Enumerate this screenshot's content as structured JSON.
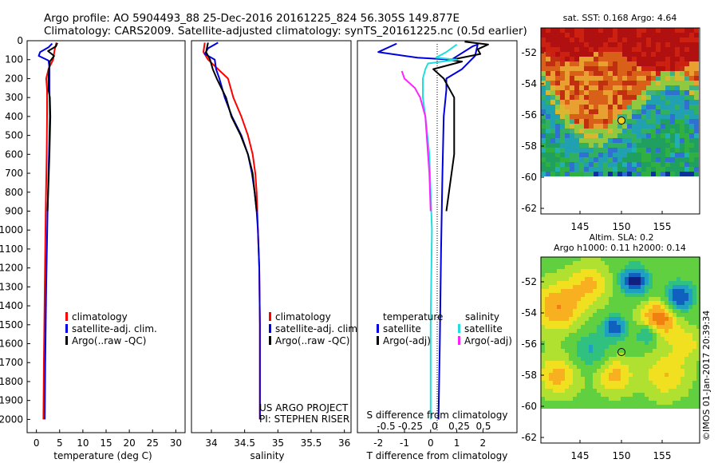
{
  "header": {
    "line1": "Argo profile: AO 5904493_88 25-Dec-2016 20161225_824 56.305S 149.877E",
    "line2": "Climatology: CARS2009. Satellite-adjusted climatology: synTS_20161225.nc (0.5d earlier)"
  },
  "colors": {
    "climatology": "#ff0000",
    "satellite": "#0000dd",
    "argo": "#000000",
    "sat_salinity": "#22dddd",
    "argo_salinity": "#ff22ff"
  },
  "depth_ticks": [
    0,
    100,
    200,
    300,
    400,
    500,
    600,
    700,
    800,
    900,
    1000,
    1100,
    1200,
    1300,
    1400,
    1500,
    1600,
    1700,
    1800,
    1900,
    2000
  ],
  "chart_data": [
    {
      "type": "line",
      "id": "temperature",
      "xlabel": "temperature (deg C)",
      "xlim": [
        -2,
        32
      ],
      "ylim": [
        0,
        2070
      ],
      "xticks": [
        "0",
        "5",
        "10",
        "15",
        "20",
        "25",
        "30"
      ],
      "legend": [
        "climatology",
        "satellite-adj. clim.",
        "Argo(..raw -QC)"
      ],
      "series": [
        {
          "name": "climatology",
          "color": "#ff0000",
          "points": [
            [
              4.3,
              10
            ],
            [
              3.9,
              50
            ],
            [
              3.6,
              100
            ],
            [
              2.6,
              150
            ],
            [
              2.1,
              200
            ],
            [
              2.3,
              260
            ],
            [
              2.3,
              400
            ],
            [
              2.2,
              600
            ],
            [
              2.0,
              900
            ],
            [
              1.8,
              1300
            ],
            [
              1.6,
              1700
            ],
            [
              1.5,
              2000
            ]
          ]
        },
        {
          "name": "satellite-adj. clim.",
          "color": "#0000dd",
          "points": [
            [
              3.4,
              15
            ],
            [
              2.6,
              35
            ],
            [
              0.8,
              60
            ],
            [
              0.5,
              80
            ],
            [
              2.6,
              105
            ],
            [
              2.8,
              140
            ],
            [
              2.8,
              200
            ],
            [
              2.8,
              260
            ],
            [
              2.9,
              400
            ],
            [
              2.7,
              600
            ],
            [
              2.4,
              900
            ],
            [
              2.1,
              1300
            ],
            [
              1.9,
              1700
            ],
            [
              1.8,
              2000
            ]
          ]
        },
        {
          "name": "Argo(..raw -QC)",
          "color": "#000000",
          "points": [
            [
              4.5,
              12
            ],
            [
              4.2,
              30
            ],
            [
              2.5,
              55
            ],
            [
              3.8,
              80
            ],
            [
              2.9,
              110
            ],
            [
              2.7,
              150
            ],
            [
              2.6,
              200
            ],
            [
              2.6,
              260
            ],
            [
              2.9,
              300
            ],
            [
              3.0,
              400
            ],
            [
              2.8,
              600
            ],
            [
              2.4,
              900
            ]
          ]
        }
      ]
    },
    {
      "type": "line",
      "id": "salinity",
      "xlabel": "salinity",
      "xlim": [
        33.7,
        36.1
      ],
      "ylim": [
        0,
        2070
      ],
      "xticks": [
        "34",
        "34.5",
        "35",
        "35.5",
        "36"
      ],
      "legend": [
        "climatology",
        "satellite-adj. clim.",
        "Argo(..raw -QC)"
      ],
      "series": [
        {
          "name": "climatology",
          "color": "#ff0000",
          "points": [
            [
              33.9,
              10
            ],
            [
              33.88,
              60
            ],
            [
              33.95,
              100
            ],
            [
              34.1,
              150
            ],
            [
              34.25,
              200
            ],
            [
              34.33,
              300
            ],
            [
              34.45,
              400
            ],
            [
              34.55,
              500
            ],
            [
              34.62,
              600
            ],
            [
              34.66,
              700
            ],
            [
              34.68,
              800
            ],
            [
              34.7,
              1000
            ],
            [
              34.72,
              1200
            ],
            [
              34.73,
              1500
            ],
            [
              34.73,
              2000
            ]
          ]
        },
        {
          "name": "satellite-adj. clim.",
          "color": "#0000dd",
          "points": [
            [
              34.1,
              10
            ],
            [
              33.95,
              40
            ],
            [
              33.9,
              70
            ],
            [
              34.05,
              100
            ],
            [
              34.07,
              150
            ],
            [
              34.12,
              200
            ],
            [
              34.2,
              300
            ],
            [
              34.31,
              400
            ],
            [
              34.45,
              500
            ],
            [
              34.55,
              600
            ],
            [
              34.61,
              700
            ],
            [
              34.65,
              800
            ],
            [
              34.68,
              900
            ],
            [
              34.7,
              1000
            ],
            [
              34.72,
              1200
            ],
            [
              34.73,
              1500
            ],
            [
              34.73,
              2000
            ]
          ]
        },
        {
          "name": "Argo(..raw -QC)",
          "color": "#000000",
          "points": [
            [
              33.95,
              10
            ],
            [
              33.92,
              60
            ],
            [
              33.98,
              100
            ],
            [
              34.02,
              150
            ],
            [
              34.08,
              200
            ],
            [
              34.15,
              250
            ],
            [
              34.22,
              300
            ],
            [
              34.3,
              400
            ],
            [
              34.44,
              500
            ],
            [
              34.55,
              600
            ],
            [
              34.62,
              700
            ],
            [
              34.65,
              800
            ],
            [
              34.68,
              900
            ]
          ]
        }
      ]
    },
    {
      "type": "line",
      "id": "difference",
      "xlabel": "T difference from climatology",
      "top_label": "S difference from climatology",
      "xlim": [
        -2.8,
        3.3
      ],
      "ylim": [
        0,
        2070
      ],
      "xticks": [
        "-2",
        "-1",
        "0",
        "1",
        "2"
      ],
      "top_ticks": [
        "-0.5",
        "-0.25",
        "0",
        "0.25",
        "0.5"
      ],
      "legend_temperature": {
        "title": "temperature",
        "items": [
          "satellite",
          "Argo(-adj)"
        ]
      },
      "legend_salinity": {
        "title": "salinity",
        "items": [
          "satellite",
          "Argo(-adj)"
        ]
      },
      "series": [
        {
          "name": "temperature satellite",
          "color": "#0000dd",
          "points": [
            [
              -1.3,
              15
            ],
            [
              -2.0,
              60
            ],
            [
              -0.5,
              90
            ],
            [
              0.8,
              100
            ],
            [
              1.6,
              30
            ],
            [
              1.8,
              20
            ],
            [
              1.7,
              80
            ],
            [
              1.2,
              150
            ],
            [
              0.6,
              200
            ],
            [
              0.6,
              260
            ],
            [
              0.5,
              400
            ],
            [
              0.45,
              700
            ],
            [
              0.4,
              1100
            ],
            [
              0.35,
              1600
            ],
            [
              0.3,
              2000
            ]
          ]
        },
        {
          "name": "temperature Argo(-adj)",
          "color": "#000000",
          "points": [
            [
              1.3,
              5
            ],
            [
              2.2,
              20
            ],
            [
              1.8,
              45
            ],
            [
              1.9,
              70
            ],
            [
              1.0,
              95
            ],
            [
              0.6,
              100
            ],
            [
              1.2,
              110
            ],
            [
              0.1,
              150
            ],
            [
              0.5,
              200
            ],
            [
              0.9,
              300
            ],
            [
              0.9,
              600
            ],
            [
              0.6,
              900
            ]
          ]
        },
        {
          "name": "salinity satellite",
          "color": "#22dddd",
          "points": [
            [
              1.0,
              20
            ],
            [
              0.6,
              60
            ],
            [
              0.2,
              90
            ],
            [
              1.0,
              100
            ],
            [
              -0.1,
              120
            ],
            [
              -0.2,
              150
            ],
            [
              -0.3,
              200
            ],
            [
              -0.3,
              300
            ],
            [
              -0.2,
              400
            ],
            [
              -0.05,
              600
            ],
            [
              0.0,
              800
            ],
            [
              0.05,
              1000
            ],
            [
              0.0,
              1500
            ],
            [
              0.0,
              2000
            ]
          ]
        },
        {
          "name": "salinity Argo(-adj)",
          "color": "#ff22ff",
          "points": [
            [
              -1.1,
              160
            ],
            [
              -1.0,
              200
            ],
            [
              -0.6,
              250
            ],
            [
              -0.4,
              300
            ],
            [
              -0.2,
              400
            ],
            [
              -0.1,
              600
            ],
            [
              -0.05,
              700
            ],
            [
              0.0,
              900
            ]
          ]
        }
      ]
    },
    {
      "type": "heatmap",
      "id": "sst",
      "title": "sat. SST: 0.168 Argo: 4.64",
      "xticks": [
        "145",
        "150",
        "155"
      ],
      "yticks": [
        "-52",
        "-54",
        "-56",
        "-58",
        "-60",
        "-62"
      ],
      "marker": [
        149.877,
        -56.305
      ]
    },
    {
      "type": "heatmap",
      "id": "sla",
      "title1": "Altim. SLA: 0.2",
      "title2": "Argo h1000: 0.11 h2000: 0.14",
      "xticks": [
        "145",
        "150",
        "155"
      ],
      "yticks": [
        "-52",
        "-54",
        "-56",
        "-58",
        "-60",
        "-62"
      ],
      "marker": [
        149.877,
        -56.305
      ]
    }
  ],
  "annotations": {
    "project": "US ARGO PROJECT",
    "pi": "PI: STEPHEN RISER",
    "credit": "©IMOS 01-Jan-2017 20:39:34"
  }
}
